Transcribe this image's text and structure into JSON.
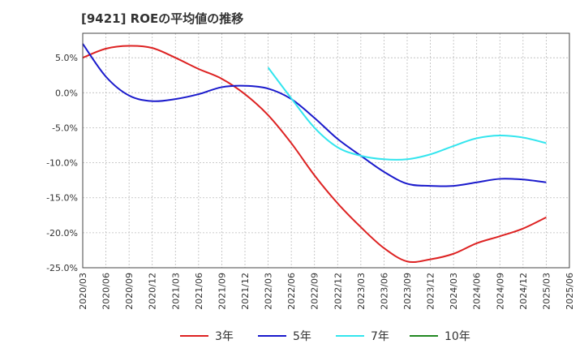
{
  "chart_data": {
    "type": "line",
    "title": "[9421]  ROEの平均値の推移",
    "xlabel": "",
    "ylabel": "",
    "ylim": [
      -25,
      8.5
    ],
    "yticks": [
      5,
      0,
      -5,
      -10,
      -15,
      -20,
      -25
    ],
    "ytick_labels": [
      "5.0%",
      "0.0%",
      "-5.0%",
      "-10.0%",
      "-15.0%",
      "-20.0%",
      "-25.0%"
    ],
    "x_labels": [
      "2020/03",
      "2020/06",
      "2020/09",
      "2020/12",
      "2021/03",
      "2021/06",
      "2021/09",
      "2021/12",
      "2022/03",
      "2022/06",
      "2022/09",
      "2022/12",
      "2023/03",
      "2023/06",
      "2023/09",
      "2023/12",
      "2024/03",
      "2024/06",
      "2024/09",
      "2024/12",
      "2025/03",
      "2025/06"
    ],
    "grid": true,
    "legend_position": "bottom",
    "series": [
      {
        "name": "3年",
        "color": "#dd2222",
        "values": [
          5.0,
          6.3,
          6.7,
          6.4,
          5.0,
          3.4,
          2.0,
          -0.2,
          -3.2,
          -7.2,
          -11.8,
          -15.8,
          -19.2,
          -22.2,
          -24.1,
          -23.8,
          -23.0,
          -21.5,
          -20.5,
          -19.4,
          -17.8,
          null
        ]
      },
      {
        "name": "5年",
        "color": "#1a1acc",
        "values": [
          7.0,
          2.3,
          -0.4,
          -1.2,
          -0.9,
          -0.2,
          0.8,
          1.0,
          0.6,
          -0.9,
          -3.6,
          -6.6,
          -9.0,
          -11.3,
          -13.0,
          -13.3,
          -13.3,
          -12.8,
          -12.3,
          -12.4,
          -12.8,
          null
        ]
      },
      {
        "name": "7年",
        "color": "#33e5ee",
        "values": [
          null,
          null,
          null,
          null,
          null,
          null,
          null,
          null,
          3.6,
          -0.8,
          -5.0,
          -7.8,
          -9.0,
          -9.5,
          -9.5,
          -8.8,
          -7.6,
          -6.5,
          -6.1,
          -6.4,
          -7.2,
          null
        ]
      },
      {
        "name": "10年",
        "color": "#228822",
        "values": []
      }
    ]
  }
}
